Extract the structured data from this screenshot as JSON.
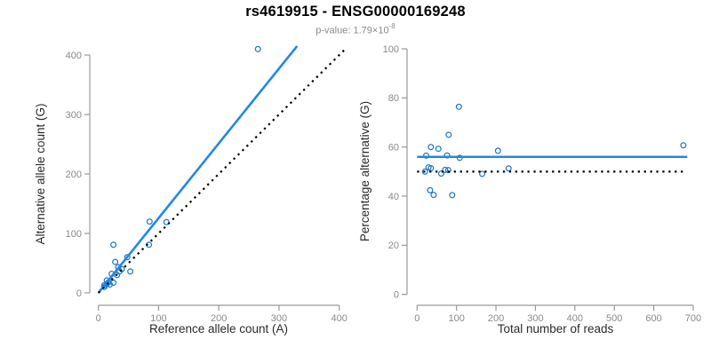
{
  "header": {
    "title": "rs4619915 - ENSG00000169248",
    "p_label": "p-value: ",
    "p_mantissa": "1.79",
    "p_times": "×",
    "p_base": "10",
    "p_exponent": "-8"
  },
  "colors": {
    "point_blue": "#1f7bc8",
    "line_blue": "#2287e8",
    "identity_black": "#000000",
    "axis_gray": "#999999",
    "tick_label_gray": "#8a8a8a",
    "axis_title_dark": "#2b2b2b",
    "subtitle_gray": "#8a8a8a"
  },
  "chart_data": [
    {
      "type": "scatter",
      "name": "allele-counts-scatter",
      "xlabel": "Reference allele count (A)",
      "ylabel": "Alternative allele count (G)",
      "xlim": [
        0,
        415
      ],
      "ylim": [
        0,
        415
      ],
      "xticks": [
        0,
        100,
        200,
        300,
        400
      ],
      "yticks": [
        0,
        100,
        200,
        300,
        400
      ],
      "grid": false,
      "marker": "open-circle",
      "points": [
        [
          10,
          10
        ],
        [
          10,
          13
        ],
        [
          14,
          15
        ],
        [
          19,
          14
        ],
        [
          17,
          18
        ],
        [
          14,
          21
        ],
        [
          25,
          17
        ],
        [
          22,
          32
        ],
        [
          31,
          30
        ],
        [
          35,
          36
        ],
        [
          33,
          43
        ],
        [
          39,
          40
        ],
        [
          28,
          52
        ],
        [
          53,
          36
        ],
        [
          25,
          81
        ],
        [
          48,
          60
        ],
        [
          84,
          81
        ],
        [
          85,
          120
        ],
        [
          113,
          119
        ],
        [
          265,
          410
        ]
      ],
      "lines": [
        {
          "name": "regression-line",
          "style": "solid",
          "width": 2.6,
          "color_key": "line_blue",
          "x": [
            0,
            330
          ],
          "y": [
            0,
            415
          ]
        },
        {
          "name": "identity-line",
          "style": "dotted",
          "width": 2.2,
          "color_key": "identity_black",
          "x": [
            0,
            412
          ],
          "y": [
            0,
            412
          ]
        }
      ]
    },
    {
      "type": "scatter",
      "name": "percentage-vs-reads-scatter",
      "xlabel": "Total number of reads",
      "ylabel": "Percentage alternative (G)",
      "xlim": [
        0,
        702
      ],
      "ylim": [
        0,
        100
      ],
      "xticks": [
        0,
        100,
        200,
        300,
        400,
        500,
        600,
        700
      ],
      "yticks": [
        0,
        20,
        40,
        60,
        80,
        100
      ],
      "grid": false,
      "marker": "open-circle",
      "points": [
        [
          20,
          50.0
        ],
        [
          23,
          56.5
        ],
        [
          29,
          51.7
        ],
        [
          33,
          42.4
        ],
        [
          35,
          51.4
        ],
        [
          35,
          60.0
        ],
        [
          42,
          40.5
        ],
        [
          54,
          59.3
        ],
        [
          61,
          49.2
        ],
        [
          71,
          50.7
        ],
        [
          76,
          56.6
        ],
        [
          79,
          50.6
        ],
        [
          80,
          65.0
        ],
        [
          89,
          40.4
        ],
        [
          106,
          76.4
        ],
        [
          108,
          55.6
        ],
        [
          165,
          49.1
        ],
        [
          205,
          58.5
        ],
        [
          232,
          51.3
        ],
        [
          675,
          60.7
        ]
      ],
      "lines": [
        {
          "name": "mean-percentage-line",
          "style": "solid",
          "width": 2.6,
          "color_key": "line_blue",
          "x": [
            0,
            685
          ],
          "y": [
            56,
            56
          ]
        },
        {
          "name": "expected-50pct-line",
          "style": "dotted",
          "width": 2.2,
          "color_key": "identity_black",
          "x": [
            0,
            680
          ],
          "y": [
            50,
            50
          ]
        }
      ]
    }
  ]
}
